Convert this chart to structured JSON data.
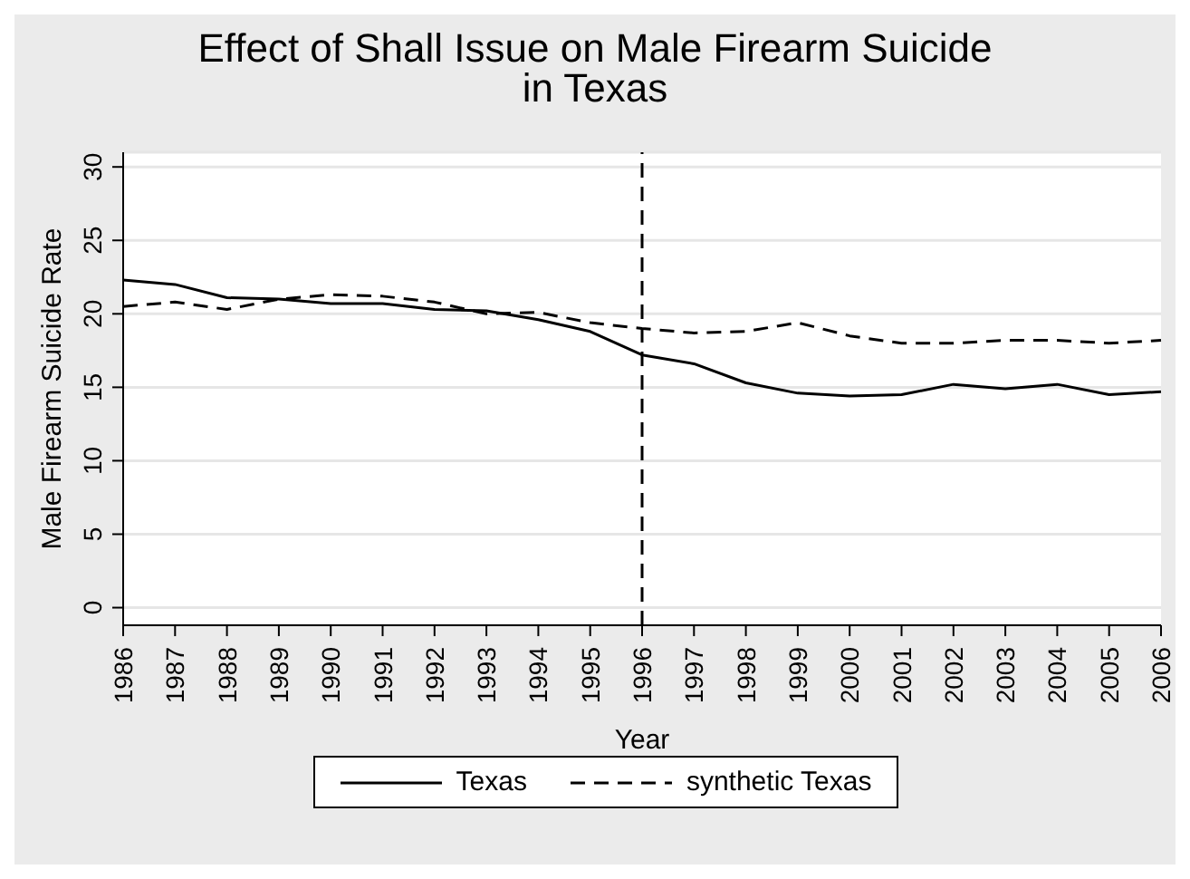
{
  "chart_data": {
    "type": "line",
    "title": "Effect of Shall Issue on Male Firearm Suicide\nin Texas",
    "xlabel": "Year",
    "ylabel": "Male Firearm Suicide Rate",
    "categories": [
      "1986",
      "1987",
      "1988",
      "1989",
      "1990",
      "1991",
      "1992",
      "1993",
      "1994",
      "1995",
      "1996",
      "1997",
      "1998",
      "1999",
      "2000",
      "2001",
      "2002",
      "2003",
      "2004",
      "2005",
      "2006"
    ],
    "series": [
      {
        "name": "Texas",
        "color": "#000000",
        "line_style": "solid",
        "values": [
          22.3,
          22.0,
          21.1,
          21.0,
          20.7,
          20.7,
          20.3,
          20.2,
          19.6,
          18.8,
          17.2,
          16.6,
          15.3,
          14.6,
          14.4,
          14.5,
          15.2,
          14.9,
          15.2,
          14.5,
          14.7
        ]
      },
      {
        "name": "synthetic Texas",
        "color": "#000000",
        "line_style": "dashed",
        "values": [
          20.5,
          20.8,
          20.3,
          21.0,
          21.3,
          21.2,
          20.8,
          20.0,
          20.1,
          19.4,
          19.0,
          18.7,
          18.8,
          19.4,
          18.5,
          18.0,
          18.0,
          18.2,
          18.2,
          18.0,
          18.2
        ]
      }
    ],
    "ylim": [
      -1.2,
      31
    ],
    "yticks": [
      0,
      5,
      10,
      15,
      20,
      25,
      30
    ],
    "grid": "y",
    "legend": "bottom",
    "marker": "none",
    "ref_lines": [
      {
        "axis": "x",
        "value": "1996",
        "line_style": "dashed",
        "color": "#000000"
      }
    ]
  }
}
